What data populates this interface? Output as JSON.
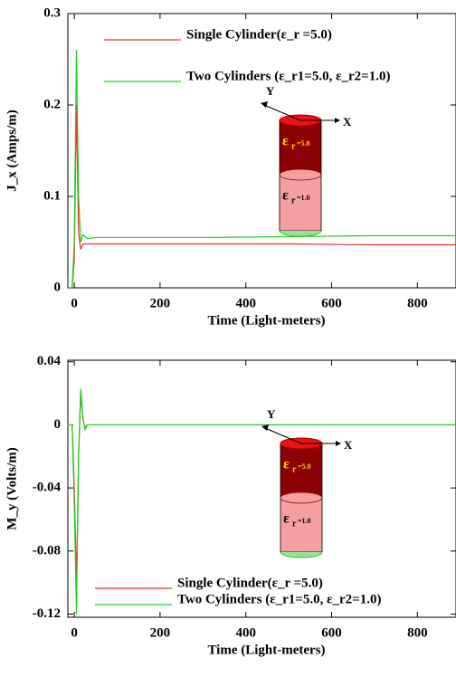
{
  "chart_data": [
    {
      "type": "line",
      "ylabel": "J_x (Amps/m)",
      "xlabel": "Time (Light-meters)",
      "x": [
        -15,
        -5,
        0,
        5,
        10,
        15,
        20,
        30,
        50,
        100,
        300,
        500,
        700,
        890
      ],
      "xlim": [
        -15,
        890
      ],
      "xticks": [
        0,
        200,
        400,
        600,
        800
      ],
      "ylim": [
        0,
        0.3
      ],
      "yticks": [
        0,
        0.1,
        0.2,
        0.3
      ],
      "legend": "upper left",
      "series": [
        {
          "name": "Single Cylinder(ε_r =5.0)",
          "color": "#e8302a",
          "values": [
            0,
            0,
            0.03,
            0.2,
            0.06,
            0.042,
            0.048,
            0.048,
            0.048,
            0.048,
            0.048,
            0.048,
            0.047,
            0.047
          ]
        },
        {
          "name": "Two Cylinders (ε_r1=5.0, ε_r2=1.0)",
          "color": "#22cc22",
          "values": [
            0,
            0,
            0.05,
            0.26,
            0.1,
            0.05,
            0.058,
            0.054,
            0.055,
            0.055,
            0.055,
            0.056,
            0.057,
            0.057
          ]
        }
      ],
      "inset": {
        "y_axis": "Y",
        "x_axis": "X",
        "upper_symbol": "ε",
        "upper_sub": "r",
        "upper_value": "=5.0",
        "lower_symbol": "ε",
        "lower_sub": "r",
        "lower_value": "=1.0"
      }
    },
    {
      "type": "line",
      "ylabel": "M_y (Volts/m)",
      "xlabel": "Time (Light-meters)",
      "x": [
        -15,
        -5,
        0,
        5,
        10,
        15,
        20,
        25,
        30,
        50,
        890
      ],
      "xlim": [
        -15,
        890
      ],
      "xticks": [
        0,
        200,
        400,
        600,
        800
      ],
      "ylim": [
        -0.122,
        0.041
      ],
      "yticks": [
        -0.12,
        -0.08,
        -0.04,
        0,
        0.04
      ],
      "legend": "lower left",
      "series": [
        {
          "name": "Single Cylinder(ε_r =5.0)",
          "color": "#e8302a",
          "values": [
            0,
            0,
            -0.04,
            -0.1,
            -0.02,
            0.02,
            0.004,
            -0.002,
            0,
            0,
            0
          ]
        },
        {
          "name": "Two Cylinders (ε_r1=5.0, ε_r2=1.0)",
          "color": "#22cc22",
          "values": [
            0,
            0,
            -0.05,
            -0.12,
            -0.02,
            0.023,
            0.005,
            -0.003,
            0,
            0,
            0
          ]
        }
      ],
      "inset": {
        "y_axis": "Y",
        "x_axis": "X",
        "upper_symbol": "ε",
        "upper_sub": "r",
        "upper_value": "=5.0",
        "lower_symbol": "ε",
        "lower_sub": "r",
        "lower_value": "=1.0"
      }
    }
  ]
}
